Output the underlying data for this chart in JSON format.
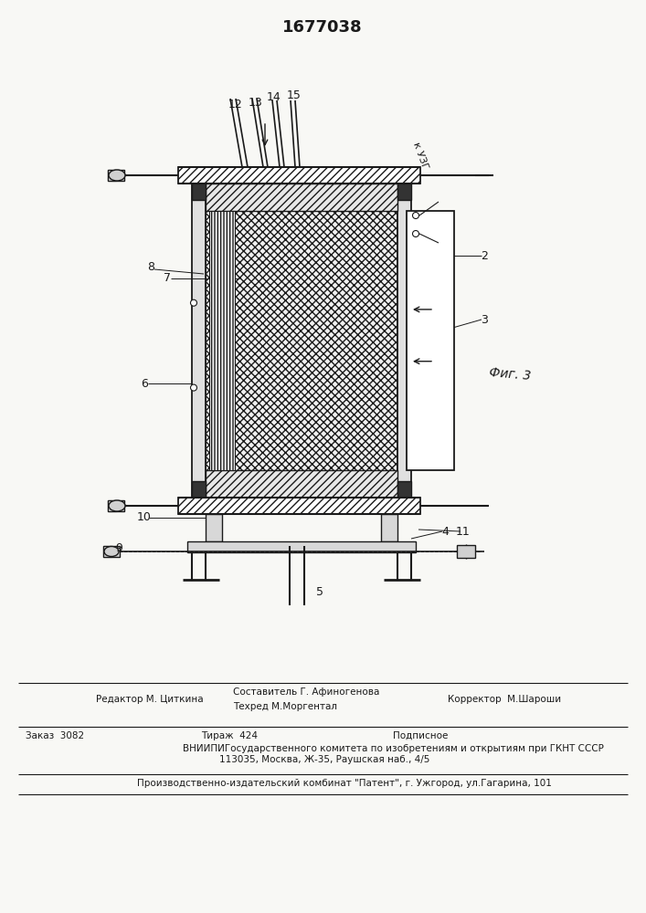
{
  "patent_number": "1677038",
  "background_color": "#f8f8f5",
  "line_color": "#1a1a1a",
  "fig_label": "Фиг. 3",
  "title_text": "1677038",
  "footer_line1_col1": "Редактор М. Циткина",
  "footer_line1_col2a": "Составитель Г. Афиногенова",
  "footer_line1_col2b": "Техред М.Моргентал",
  "footer_line1_col3": "Корректор  М.Шароши",
  "footer_line2_col1": "Заказ  3082",
  "footer_line2_col2": "Тираж  424",
  "footer_line2_col3": "Подписное",
  "footer_line3": "ВНИИПИГосударственного комитета по изобретениям и открытиям при ГКНТ СССР",
  "footer_line4": "113035, Москва, Ж-35, Раушская наб., 4/5",
  "footer_line5": "Производственно-издательский комбинат \"Патент\", г. Ужгород, ул.Гагарина, 101",
  "label_kuzg": "к УЗГ"
}
